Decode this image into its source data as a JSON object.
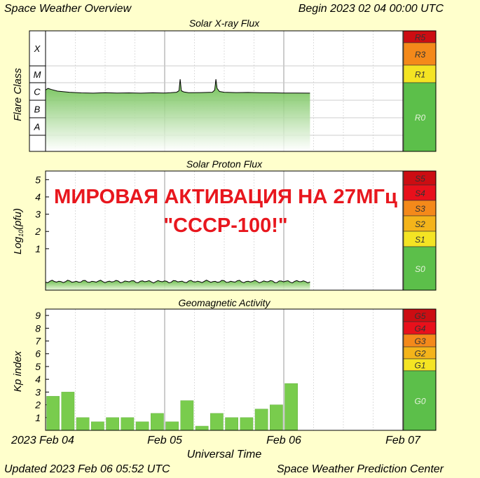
{
  "header": {
    "title": "Space Weather Overview",
    "begin": "Begin 2023 02 04 00:00 UTC"
  },
  "footer": {
    "updated": "Updated 2023 Feb 06 05:52 UTC",
    "source": "Space Weather Prediction Center"
  },
  "overlay": {
    "line1": "МИРОВАЯ АКТИВАЦИЯ НА 27МГц",
    "line2": "\"СССР-100!\"",
    "color": "#e8171e"
  },
  "colors": {
    "background": "#ffffcc",
    "green_scale": "#5cbf4a",
    "yellow_scale": "#f4e423",
    "orange_scale": "#f4891a",
    "red_scale": "#e8101b",
    "dark_red_scale": "#cc0d12",
    "data_fill": "#79cc4d"
  },
  "chart_data": [
    {
      "type": "area",
      "title": "Solar X-ray Flux",
      "ylabel": "Flare Class",
      "y_classes": [
        "X",
        "M",
        "C",
        "B",
        "A"
      ],
      "y_scale": "log",
      "x_days": [
        "2023-02-04",
        "2023-02-05",
        "2023-02-06",
        "2023-02-07"
      ],
      "x_range_days": [
        0,
        3
      ],
      "data_end_day": 2.22,
      "baseline_class": "B8",
      "x": [
        0,
        0.02,
        0.05,
        0.1,
        0.2,
        0.3,
        0.4,
        0.5,
        0.6,
        0.7,
        0.8,
        0.9,
        1.0,
        1.05,
        1.1,
        1.12,
        1.13,
        1.14,
        1.16,
        1.2,
        1.3,
        1.4,
        1.42,
        1.43,
        1.44,
        1.46,
        1.5,
        1.6,
        1.7,
        1.8,
        1.9,
        2.0,
        2.1,
        2.22
      ],
      "y": [
        1.2e-06,
        1.5e-06,
        1.3e-06,
        1.05e-06,
        9e-07,
        8.3e-07,
        8e-07,
        8.5e-07,
        8.1e-07,
        8.3e-07,
        8e-07,
        8.4e-07,
        8.2e-07,
        8.5e-07,
        9e-07,
        1.1e-06,
        5e-06,
        1.1e-06,
        9.5e-07,
        8.5e-07,
        8.6e-07,
        9e-07,
        1.2e-06,
        5e-06,
        1.5e-06,
        1e-06,
        9e-07,
        8.6e-07,
        8.8e-07,
        8.5e-07,
        8.4e-07,
        8.2e-07,
        8.1e-07,
        8e-07
      ],
      "scale": [
        {
          "label": "R5",
          "color": "#cc0d12"
        },
        {
          "label": "R3",
          "color": "#f4891a"
        },
        {
          "label": "R1",
          "color": "#f4e423"
        },
        {
          "label": "R0",
          "color": "#5cbf4a"
        }
      ]
    },
    {
      "type": "area",
      "title": "Solar Proton Flux",
      "ylabel": "Log10(pfu)",
      "ylabel_base": "Log",
      "ylabel_sub": "10",
      "ylabel_rest": "(pfu)",
      "y_ticks": [
        "5",
        "4",
        "3",
        "2",
        "1"
      ],
      "ylim": [
        -1.4,
        5.5
      ],
      "x_range_days": [
        0,
        3
      ],
      "data_end_day": 2.22,
      "baseline_log10_pfu": -0.9,
      "scale": [
        {
          "label": "S5",
          "color": "#cc0d12"
        },
        {
          "label": "S4",
          "color": "#e8101b"
        },
        {
          "label": "S3",
          "color": "#f4891a"
        },
        {
          "label": "S2",
          "color": "#f4b41a"
        },
        {
          "label": "S1",
          "color": "#f4e423"
        },
        {
          "label": "S0",
          "color": "#5cbf4a"
        }
      ]
    },
    {
      "type": "bar",
      "title": "Geomagnetic Activity",
      "ylabel": "Kp index",
      "y_ticks": [
        "9",
        "8",
        "7",
        "6",
        "5",
        "4",
        "3",
        "2",
        "1"
      ],
      "ylim": [
        0,
        9.5
      ],
      "x_range_days": [
        0,
        3
      ],
      "xlabel": "Universal Time",
      "x_tick_labels": [
        "2023 Feb 04",
        "Feb 05",
        "Feb 06",
        "Feb 07"
      ],
      "bar_interval_hours": 3,
      "values": [
        2.67,
        3.0,
        1.0,
        0.67,
        1.0,
        1.0,
        0.67,
        1.33,
        0.67,
        2.33,
        0.33,
        1.33,
        1.0,
        1.0,
        1.67,
        2.0,
        3.67
      ],
      "scale": [
        {
          "label": "G5",
          "color": "#cc0d12"
        },
        {
          "label": "G4",
          "color": "#e8101b"
        },
        {
          "label": "G3",
          "color": "#f4891a"
        },
        {
          "label": "G2",
          "color": "#f4b41a"
        },
        {
          "label": "G1",
          "color": "#f4e423"
        },
        {
          "label": "G0",
          "color": "#5cbf4a"
        }
      ]
    }
  ]
}
